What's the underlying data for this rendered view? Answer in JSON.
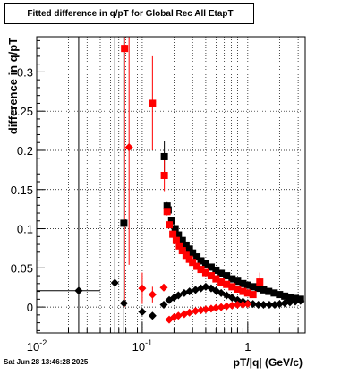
{
  "header": {
    "title": "Fitted difference in q/pT for Global Rec All EtapT"
  },
  "footer": {
    "timestamp": "Sat Jun 28 13:46:28 2025"
  },
  "chart_data": {
    "type": "scatter",
    "title": "Fitted difference in q/pT for Global Rec All EtapT",
    "xlabel": "pT/|q| (GeV/c)",
    "ylabel": "difference in q/pT",
    "xscale": "log",
    "xlim": [
      0.01,
      3.5
    ],
    "ylim": [
      -0.033,
      0.345
    ],
    "grid": true,
    "x_ticks": [
      {
        "value": 0.01,
        "base": "10",
        "exp": "-2"
      },
      {
        "value": 0.1,
        "base": "10",
        "exp": "-1"
      },
      {
        "value": 1,
        "base": "1",
        "exp": ""
      }
    ],
    "y_ticks": [
      {
        "value": 0,
        "label": "0"
      },
      {
        "value": 0.05,
        "label": "0.05"
      },
      {
        "value": 0.1,
        "label": "0.1"
      },
      {
        "value": 0.15,
        "label": "0.15"
      },
      {
        "value": 0.2,
        "label": "0.2"
      },
      {
        "value": 0.25,
        "label": "0.25"
      },
      {
        "value": 0.3,
        "label": "0.3"
      }
    ],
    "colors": {
      "black": "#000000",
      "red": "#ff0000"
    },
    "series": [
      {
        "marker": "square",
        "color": "#000000",
        "points": [
          {
            "x": 0.067,
            "y": 0.107,
            "err": 0.3
          },
          {
            "x": 0.162,
            "y": 0.192,
            "err": 0.02
          },
          {
            "x": 0.172,
            "y": 0.129,
            "err": 0.005
          },
          {
            "x": 0.176,
            "y": 0.124,
            "err": 0.004
          },
          {
            "x": 0.19,
            "y": 0.11,
            "err": 0.003
          },
          {
            "x": 0.205,
            "y": 0.1,
            "err": 0.003
          },
          {
            "x": 0.22,
            "y": 0.092
          },
          {
            "x": 0.24,
            "y": 0.085
          },
          {
            "x": 0.26,
            "y": 0.079
          },
          {
            "x": 0.28,
            "y": 0.074
          },
          {
            "x": 0.3,
            "y": 0.069
          },
          {
            "x": 0.33,
            "y": 0.064
          },
          {
            "x": 0.36,
            "y": 0.059
          },
          {
            "x": 0.4,
            "y": 0.055
          },
          {
            "x": 0.45,
            "y": 0.051
          },
          {
            "x": 0.5,
            "y": 0.047
          },
          {
            "x": 0.56,
            "y": 0.043
          },
          {
            "x": 0.63,
            "y": 0.04
          },
          {
            "x": 0.71,
            "y": 0.036
          },
          {
            "x": 0.8,
            "y": 0.033
          },
          {
            "x": 0.9,
            "y": 0.03
          },
          {
            "x": 1.0,
            "y": 0.028
          },
          {
            "x": 1.12,
            "y": 0.026
          },
          {
            "x": 1.26,
            "y": 0.024
          },
          {
            "x": 1.41,
            "y": 0.022
          },
          {
            "x": 1.58,
            "y": 0.02
          },
          {
            "x": 1.78,
            "y": 0.018
          },
          {
            "x": 2.0,
            "y": 0.016
          },
          {
            "x": 2.24,
            "y": 0.014
          },
          {
            "x": 2.51,
            "y": 0.012
          },
          {
            "x": 2.82,
            "y": 0.011
          },
          {
            "x": 3.16,
            "y": 0.01
          }
        ]
      },
      {
        "marker": "square",
        "color": "#ff0000",
        "points": [
          {
            "x": 0.068,
            "y": 0.33,
            "err": 0.33
          },
          {
            "x": 0.125,
            "y": 0.26,
            "err": 0.06
          },
          {
            "x": 0.162,
            "y": 0.168,
            "err": 0.02
          },
          {
            "x": 0.172,
            "y": 0.122,
            "err": 0.005
          },
          {
            "x": 0.18,
            "y": 0.105
          },
          {
            "x": 0.195,
            "y": 0.093
          },
          {
            "x": 0.21,
            "y": 0.085
          },
          {
            "x": 0.225,
            "y": 0.078
          },
          {
            "x": 0.24,
            "y": 0.072
          },
          {
            "x": 0.26,
            "y": 0.066
          },
          {
            "x": 0.28,
            "y": 0.061
          },
          {
            "x": 0.3,
            "y": 0.057
          },
          {
            "x": 0.33,
            "y": 0.052
          },
          {
            "x": 0.36,
            "y": 0.048
          },
          {
            "x": 0.4,
            "y": 0.044
          },
          {
            "x": 0.45,
            "y": 0.04
          },
          {
            "x": 0.5,
            "y": 0.036
          },
          {
            "x": 0.56,
            "y": 0.032
          },
          {
            "x": 0.63,
            "y": 0.029
          },
          {
            "x": 0.71,
            "y": 0.026
          },
          {
            "x": 0.8,
            "y": 0.023
          },
          {
            "x": 0.9,
            "y": 0.02
          },
          {
            "x": 1.0,
            "y": 0.018
          },
          {
            "x": 1.12,
            "y": 0.016
          },
          {
            "x": 1.3,
            "y": 0.032,
            "err": 0.012
          }
        ]
      },
      {
        "marker": "diamond",
        "color": "#000000",
        "points": [
          {
            "x": 0.025,
            "y": 0.021,
            "err": 0.4,
            "xerr": [
              0.01,
              0.04
            ]
          },
          {
            "x": 0.055,
            "y": 0.031,
            "err": 0.4
          },
          {
            "x": 0.067,
            "y": 0.005,
            "err": 0.4
          },
          {
            "x": 0.1,
            "y": -0.006
          },
          {
            "x": 0.125,
            "y": -0.011
          },
          {
            "x": 0.16,
            "y": 0.003
          },
          {
            "x": 0.18,
            "y": 0.009
          },
          {
            "x": 0.2,
            "y": 0.012
          },
          {
            "x": 0.22,
            "y": 0.015
          },
          {
            "x": 0.25,
            "y": 0.018
          },
          {
            "x": 0.28,
            "y": 0.02
          },
          {
            "x": 0.32,
            "y": 0.022
          },
          {
            "x": 0.36,
            "y": 0.024
          },
          {
            "x": 0.4,
            "y": 0.026
          },
          {
            "x": 0.45,
            "y": 0.024
          },
          {
            "x": 0.5,
            "y": 0.021
          },
          {
            "x": 0.56,
            "y": 0.018
          },
          {
            "x": 0.63,
            "y": 0.015
          },
          {
            "x": 0.71,
            "y": 0.012
          },
          {
            "x": 0.8,
            "y": 0.009
          },
          {
            "x": 0.9,
            "y": 0.007
          },
          {
            "x": 1.0,
            "y": 0.005
          },
          {
            "x": 1.12,
            "y": 0.004
          },
          {
            "x": 1.26,
            "y": 0.003
          },
          {
            "x": 1.41,
            "y": 0.003
          },
          {
            "x": 1.6,
            "y": 0.003
          },
          {
            "x": 1.8,
            "y": 0.003
          },
          {
            "x": 2.0,
            "y": 0.004
          },
          {
            "x": 2.24,
            "y": 0.005
          },
          {
            "x": 2.51,
            "y": 0.006
          },
          {
            "x": 2.82,
            "y": 0.007
          },
          {
            "x": 3.16,
            "y": 0.008
          }
        ]
      },
      {
        "marker": "diamond",
        "color": "#ff0000",
        "points": [
          {
            "x": 0.075,
            "y": 0.204,
            "err": 0.15
          },
          {
            "x": 0.1,
            "y": 0.024,
            "err": 0.02
          },
          {
            "x": 0.125,
            "y": 0.016,
            "err": 0.01
          },
          {
            "x": 0.16,
            "y": 0.025
          },
          {
            "x": 0.18,
            "y": -0.016
          },
          {
            "x": 0.2,
            "y": -0.013
          },
          {
            "x": 0.22,
            "y": -0.011
          },
          {
            "x": 0.25,
            "y": -0.009
          },
          {
            "x": 0.28,
            "y": -0.007
          },
          {
            "x": 0.32,
            "y": -0.005
          },
          {
            "x": 0.36,
            "y": -0.004
          },
          {
            "x": 0.4,
            "y": -0.003
          },
          {
            "x": 0.45,
            "y": -0.002
          },
          {
            "x": 0.5,
            "y": -0.001
          },
          {
            "x": 0.56,
            "y": 0.0
          },
          {
            "x": 0.63,
            "y": 0.001
          },
          {
            "x": 0.71,
            "y": 0.002
          },
          {
            "x": 0.8,
            "y": 0.003
          },
          {
            "x": 0.9,
            "y": 0.003
          },
          {
            "x": 1.0,
            "y": 0.004
          }
        ]
      }
    ]
  }
}
